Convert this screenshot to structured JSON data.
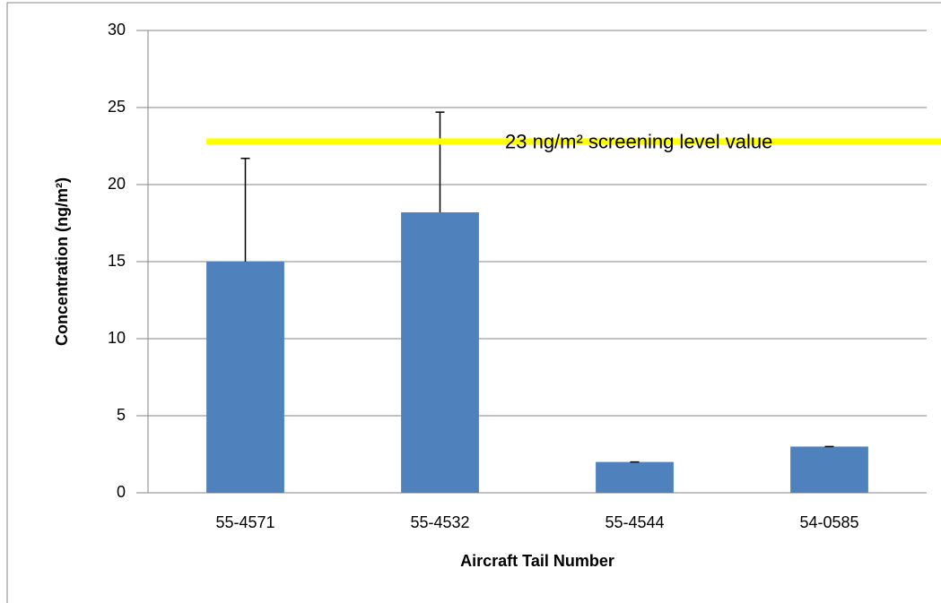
{
  "chart_data": {
    "type": "bar",
    "categories": [
      "55-4571",
      "55-4532",
      "55-4544",
      "54-0585"
    ],
    "values": [
      15,
      18.2,
      2,
      3
    ],
    "errors": [
      6.7,
      6.5,
      0,
      0
    ],
    "color": "#4f81bd",
    "error_color": "#000000",
    "reference_line": {
      "value": 22.8,
      "label": "23 ng/m² screening level value",
      "color": "#ffff00"
    },
    "ylim": [
      0,
      30
    ],
    "yticks": [
      0,
      5,
      10,
      15,
      20,
      25,
      30
    ],
    "x_label": "Aircraft Tail Number",
    "y_label": "Concentration (ng/m²)",
    "grid": true
  }
}
